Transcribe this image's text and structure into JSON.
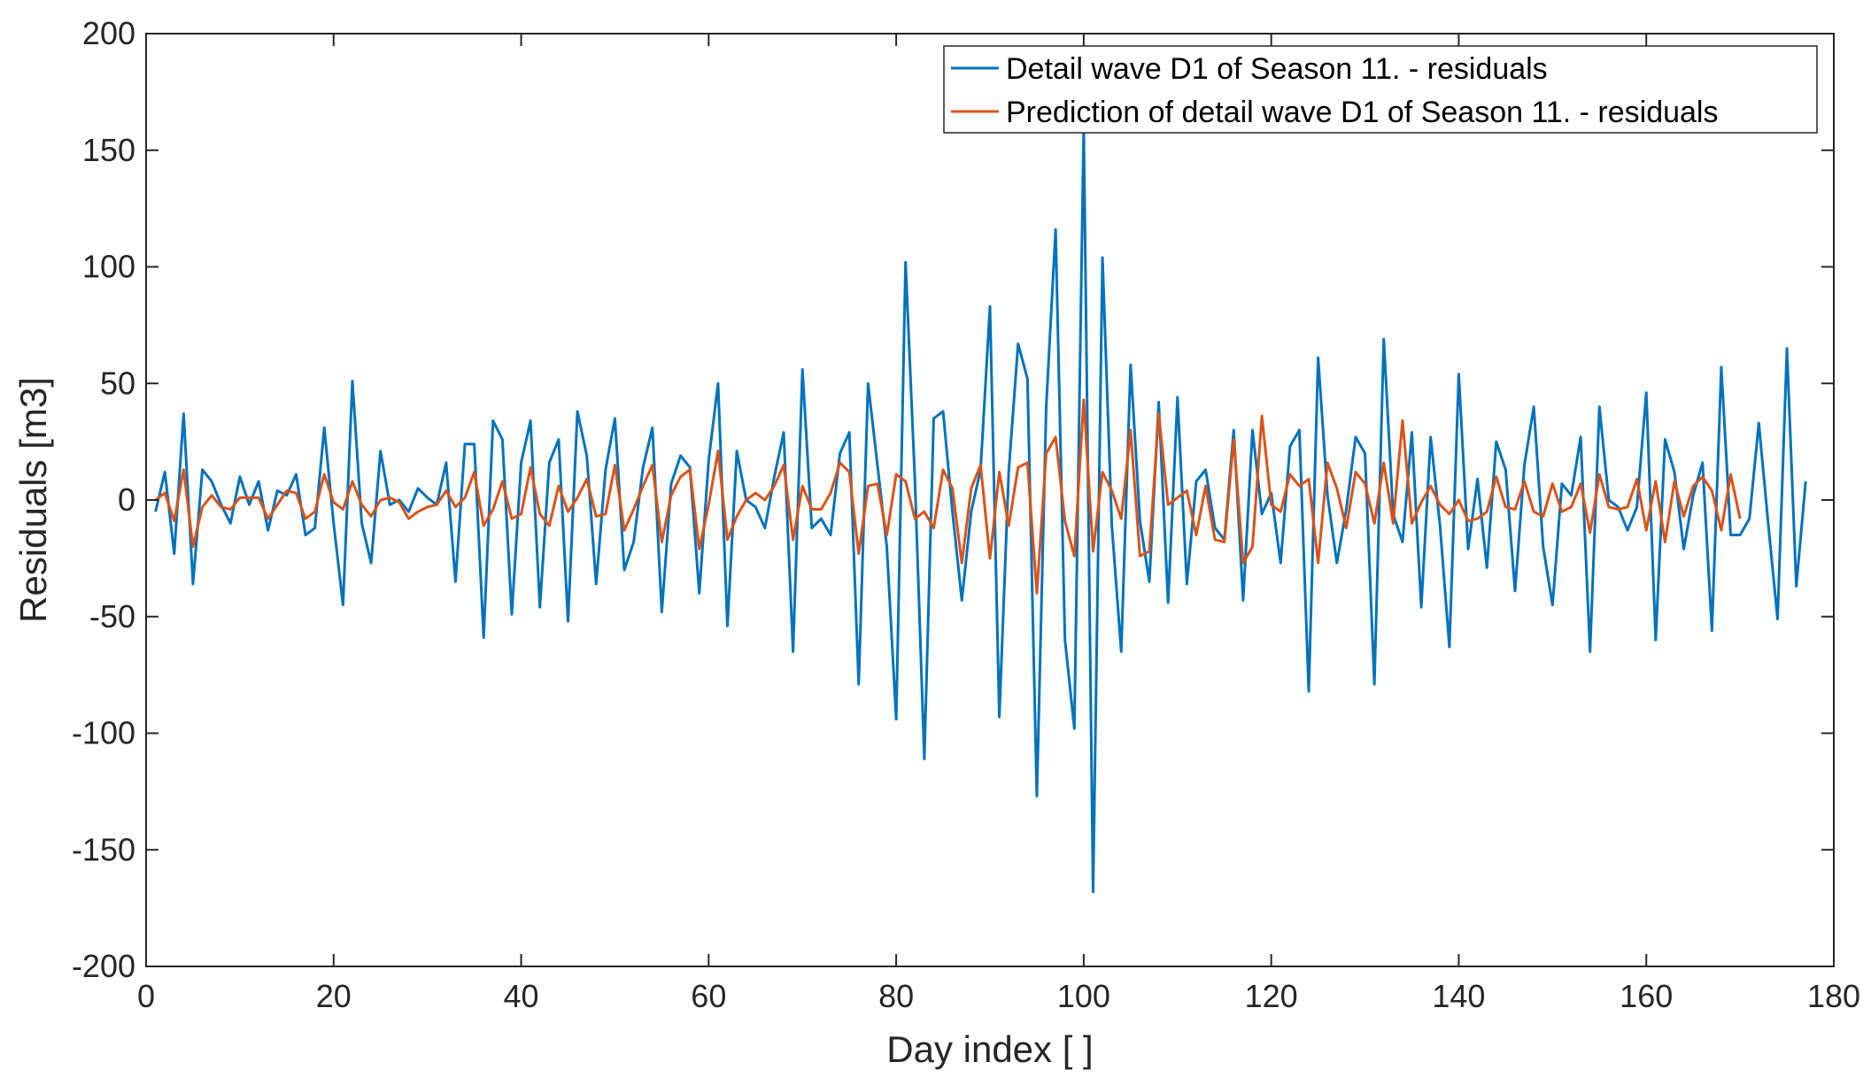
{
  "chart_data": {
    "type": "line",
    "title": "",
    "xlabel": "Day index [ ]",
    "ylabel": "Residuals [m3]",
    "xlim": [
      0,
      180
    ],
    "ylim": [
      -200,
      200
    ],
    "xticks": [
      0,
      20,
      40,
      60,
      80,
      100,
      120,
      140,
      160,
      180
    ],
    "yticks": [
      -200,
      -150,
      -100,
      -50,
      0,
      50,
      100,
      150,
      200
    ],
    "grid": false,
    "legend_position": "top-right",
    "series": [
      {
        "name": "Detail wave D1 of Season 11. - residuals",
        "color": "#0072BD",
        "x_start": 1,
        "values": [
          -5,
          12,
          -23,
          37,
          -36,
          13,
          8,
          -2,
          -10,
          10,
          -2,
          8,
          -13,
          4,
          2,
          11,
          -15,
          -12,
          31,
          -10,
          -45,
          51,
          -10,
          -27,
          21,
          -2,
          0,
          -5,
          5,
          1,
          -2,
          16,
          -35,
          24,
          24,
          -59,
          34,
          26,
          -49,
          16,
          34,
          -46,
          16,
          26,
          -52,
          38,
          19,
          -36,
          13,
          35,
          -30,
          -18,
          14,
          31,
          -48,
          7,
          19,
          14,
          -40,
          17,
          50,
          -54,
          21,
          0,
          -3,
          -12,
          10,
          29,
          -65,
          56,
          -12,
          -8,
          -15,
          20,
          29,
          -79,
          50,
          15,
          -20,
          -94,
          102,
          8,
          -111,
          35,
          38,
          -5,
          -43,
          -5,
          13,
          83,
          -93,
          12,
          67,
          52,
          -127,
          40,
          116,
          -60,
          -98,
          160,
          -168,
          104,
          -11,
          -65,
          58,
          -9,
          -35,
          42,
          -44,
          44,
          -36,
          8,
          13,
          -12,
          -17,
          30,
          -43,
          30,
          -6,
          3,
          -27,
          23,
          30,
          -82,
          61,
          2,
          -27,
          -4,
          27,
          20,
          -79,
          69,
          -6,
          -18,
          29,
          -46,
          27,
          -11,
          -63,
          54,
          -21,
          9,
          -29,
          25,
          13,
          -39,
          15,
          40,
          -20,
          -45,
          7,
          2,
          27,
          -65,
          40,
          0,
          -3,
          -13,
          -3,
          46,
          -60,
          26,
          12,
          -21,
          2,
          16,
          -56,
          57,
          -15,
          -15,
          -8,
          33,
          -10,
          -51,
          65,
          -37,
          8
        ]
      },
      {
        "name": "Prediction of  detail wave D1 of Season 11. - residuals",
        "color": "#D95319",
        "x_start": 1,
        "values": [
          0,
          3,
          -9,
          13,
          -20,
          -3,
          2,
          -3,
          -4,
          1,
          1,
          1,
          -8,
          -2,
          4,
          3,
          -8,
          -5,
          11,
          -1,
          -4,
          8,
          -2,
          -7,
          0,
          1,
          -1,
          -8,
          -5,
          -3,
          -2,
          4,
          -3,
          1,
          12,
          -11,
          -4,
          8,
          -8,
          -6,
          14,
          -6,
          -11,
          6,
          -5,
          1,
          9,
          -7,
          -6,
          15,
          -13,
          -4,
          6,
          15,
          -18,
          2,
          10,
          13,
          -21,
          -2,
          21,
          -17,
          -7,
          0,
          3,
          0,
          6,
          15,
          -17,
          6,
          -4,
          -4,
          3,
          16,
          12,
          -23,
          6,
          7,
          -15,
          11,
          8,
          -8,
          -5,
          -12,
          13,
          5,
          -27,
          5,
          15,
          -25,
          12,
          -11,
          14,
          16,
          -40,
          20,
          27,
          -9,
          -24,
          43,
          -22,
          12,
          4,
          -8,
          30,
          -24,
          -22,
          37,
          -2,
          1,
          4,
          -15,
          6,
          -17,
          -18,
          26,
          -27,
          -20,
          36,
          -2,
          -5,
          11,
          6,
          9,
          -27,
          16,
          5,
          -12,
          12,
          7,
          -10,
          16,
          -10,
          34,
          -10,
          -1,
          6,
          -2,
          -6,
          0,
          -9,
          -8,
          -5,
          10,
          -3,
          -4,
          8,
          -5,
          -7,
          7,
          -5,
          -3,
          7,
          -14,
          11,
          -3,
          -4,
          -3,
          9,
          -13,
          8,
          -18,
          8,
          -7,
          6,
          10,
          4,
          -13,
          11,
          -8
        ]
      }
    ]
  }
}
